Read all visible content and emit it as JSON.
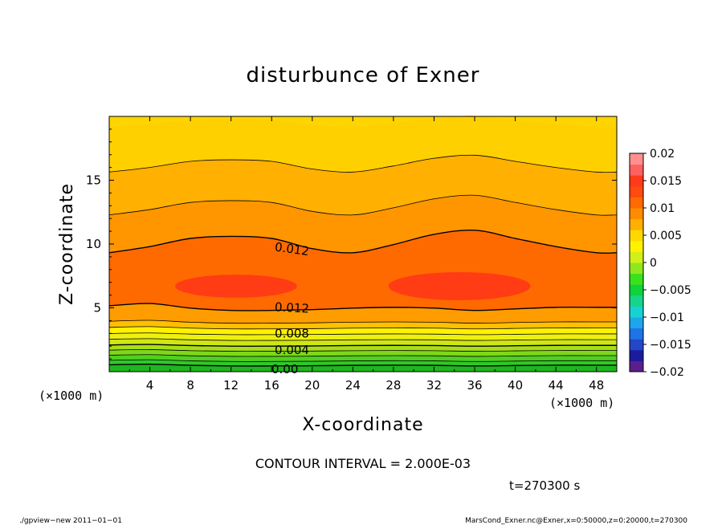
{
  "chart_data": {
    "type": "heatmap",
    "title": "disturbunce of Exner",
    "xlabel": "X-coordinate",
    "ylabel": "Z-coordinate",
    "x_unit": "(×1000 m)",
    "y_unit": "(×1000 m)",
    "xlim": [
      0,
      50
    ],
    "ylim": [
      0,
      20
    ],
    "x_ticks": [
      "4",
      "8",
      "12",
      "16",
      "20",
      "24",
      "28",
      "32",
      "36",
      "40",
      "44",
      "48"
    ],
    "y_ticks": [
      "5",
      "10",
      "15"
    ],
    "contour_interval_label": "CONTOUR INTERVAL = 2.000E-03",
    "time_label": "t=270300 s",
    "contour_labels": [
      "0.012",
      "0.012",
      "0.008",
      "0.004",
      "0.00"
    ],
    "colorbar": {
      "min": -0.02,
      "max": 0.02,
      "tick_labels": [
        "0.02",
        "0.015",
        "0.01",
        "0.005",
        "0",
        "−0.005",
        "−0.01",
        "−0.015",
        "−0.02"
      ],
      "colors": [
        "#5b1e8c",
        "#1b1b9e",
        "#2446c8",
        "#1e74e6",
        "#1ea6ec",
        "#17d2d2",
        "#16d58a",
        "#10d23a",
        "#39e21a",
        "#8ee81c",
        "#d2ef1a",
        "#fff200",
        "#ffd800",
        "#ffb000",
        "#ff8c00",
        "#ff6a00",
        "#ff4a10",
        "#ff3a1a",
        "#ff6060",
        "#ff9090"
      ]
    },
    "footer_left": "./gpview−new   2011−01−01",
    "footer_right": "MarsCond_Exner.nc@Exner,x=0:50000,z=0:20000,t=270300"
  }
}
